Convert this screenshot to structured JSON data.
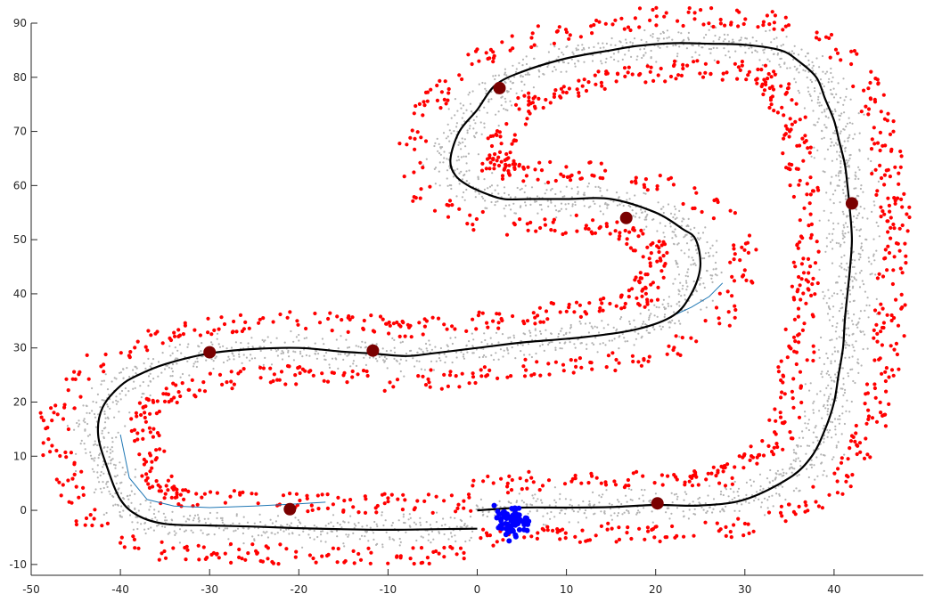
{
  "chart_data": {
    "type": "scatter",
    "title": "",
    "xlabel": "",
    "ylabel": "",
    "xlim": [
      -50,
      50
    ],
    "ylim": [
      -12,
      90
    ],
    "grid": false,
    "x_ticks": [
      -50,
      -40,
      -30,
      -20,
      -10,
      0,
      10,
      20,
      30,
      40
    ],
    "y_ticks": [
      -10,
      0,
      10,
      20,
      30,
      40,
      50,
      60,
      70,
      80,
      90
    ],
    "colors": {
      "sample_points": "#b3b3b3",
      "landmarks": "#ff0000",
      "current_particles": "#0000ff",
      "estimated_path": "#000000",
      "reference_path": "#1f77b4",
      "anchors": "#7a0000"
    },
    "series": [
      {
        "type": "line",
        "role": "estimated_path",
        "x": [
          0,
          5,
          10,
          15,
          20,
          25,
          30,
          35,
          37.5,
          39,
          40,
          40.5,
          41,
          41.2,
          41.5,
          41.8,
          42,
          41.8,
          41.5,
          41.2,
          40.6,
          40,
          39,
          38,
          36,
          34,
          30,
          26,
          22,
          18,
          15,
          10,
          5,
          2,
          0,
          -2,
          -3,
          -2.5,
          -1,
          1,
          3,
          6,
          10,
          15,
          20,
          23,
          24.5,
          25,
          24,
          22,
          18,
          12,
          5,
          0,
          -5,
          -8,
          -12,
          -15,
          -20,
          -25,
          -30,
          -35,
          -38,
          -40,
          -42,
          -42.5,
          -41.5,
          -40,
          -38,
          -35,
          -30,
          -25,
          -20,
          -15,
          -10,
          -5,
          0
        ],
        "y": [
          0,
          0.5,
          0.5,
          0.6,
          1,
          0.9,
          2,
          6,
          10,
          15,
          20,
          25,
          30,
          35,
          40,
          45,
          50,
          55,
          60,
          64,
          68,
          72,
          76,
          80,
          83,
          85,
          86,
          86.2,
          86.3,
          85.8,
          85,
          83.5,
          81,
          78.5,
          74,
          70,
          65,
          62,
          60,
          58.5,
          57.5,
          57.5,
          57.5,
          57.5,
          55,
          52,
          50,
          45,
          40,
          36,
          33.5,
          32,
          31,
          30,
          29,
          28.5,
          29,
          29.3,
          30,
          29.8,
          29,
          27,
          25,
          23,
          19,
          14,
          8,
          2,
          -1,
          -2.5,
          -2.8,
          -3,
          -3.3,
          -3.5,
          -3.6,
          -3.5,
          -3.4
        ]
      },
      {
        "type": "line",
        "role": "reference_path",
        "x": [
          -40,
          -39,
          -37,
          -34,
          -30,
          -25,
          -20,
          -17
        ],
        "y": [
          14,
          6,
          2,
          0.8,
          0.5,
          0.8,
          1.2,
          1.5
        ]
      },
      {
        "type": "line",
        "role": "reference_path",
        "x": [
          22,
          24,
          26,
          27.5
        ],
        "y": [
          36,
          37.5,
          39.5,
          42
        ]
      },
      {
        "type": "scatter",
        "role": "anchors",
        "x": [
          2.5,
          16.7,
          42,
          -30,
          -11.7,
          -21,
          20.2
        ],
        "y": [
          78,
          54,
          56.7,
          29.2,
          29.5,
          0.2,
          1.3
        ]
      }
    ]
  }
}
